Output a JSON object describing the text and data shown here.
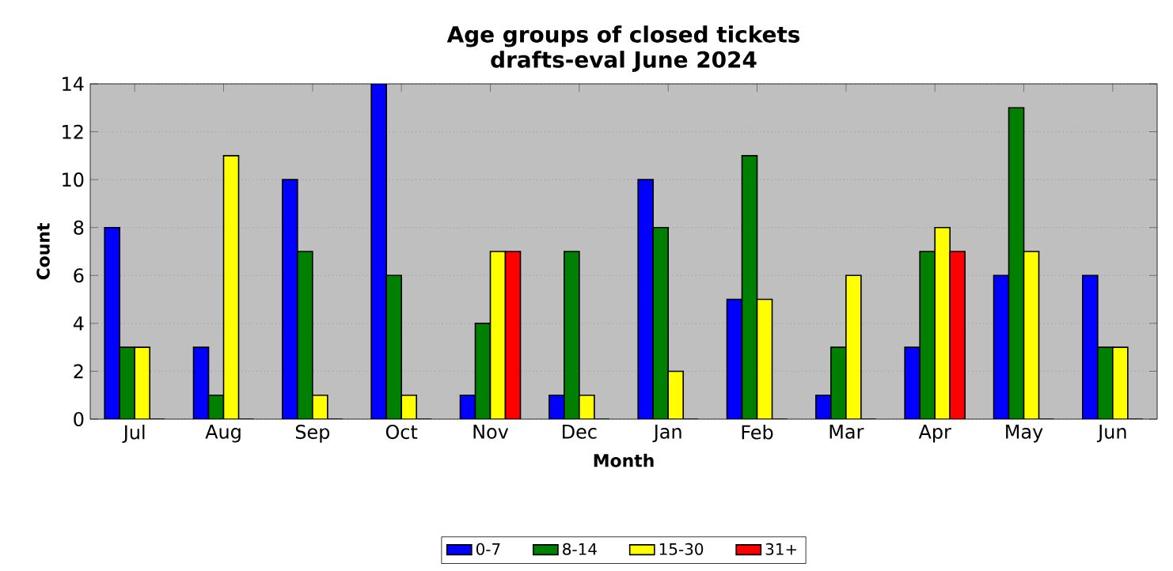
{
  "chart_data": {
    "type": "bar",
    "title": "Age groups of closed tickets",
    "subtitle": "drafts-eval June 2024",
    "xlabel": "Month",
    "ylabel": "Count",
    "categories": [
      "Jul",
      "Aug",
      "Sep",
      "Oct",
      "Nov",
      "Dec",
      "Jan",
      "Feb",
      "Mar",
      "Apr",
      "May",
      "Jun"
    ],
    "series": [
      {
        "name": "0-7",
        "color": "#0000ff",
        "values": [
          8,
          3,
          10,
          14,
          1,
          1,
          10,
          5,
          1,
          3,
          6,
          6
        ]
      },
      {
        "name": "8-14",
        "color": "#008000",
        "values": [
          3,
          1,
          7,
          6,
          4,
          7,
          8,
          11,
          3,
          7,
          13,
          3
        ]
      },
      {
        "name": "15-30",
        "color": "#ffff00",
        "values": [
          3,
          11,
          1,
          1,
          7,
          1,
          2,
          5,
          6,
          8,
          7,
          3
        ]
      },
      {
        "name": "31+",
        "color": "#ff0000",
        "values": [
          0,
          0,
          0,
          0,
          7,
          0,
          0,
          0,
          0,
          7,
          0,
          0
        ]
      }
    ],
    "ylim": [
      0,
      14
    ],
    "yticks": [
      0,
      2,
      4,
      6,
      8,
      10,
      12,
      14
    ],
    "grid": "y",
    "legend": "bottom"
  }
}
